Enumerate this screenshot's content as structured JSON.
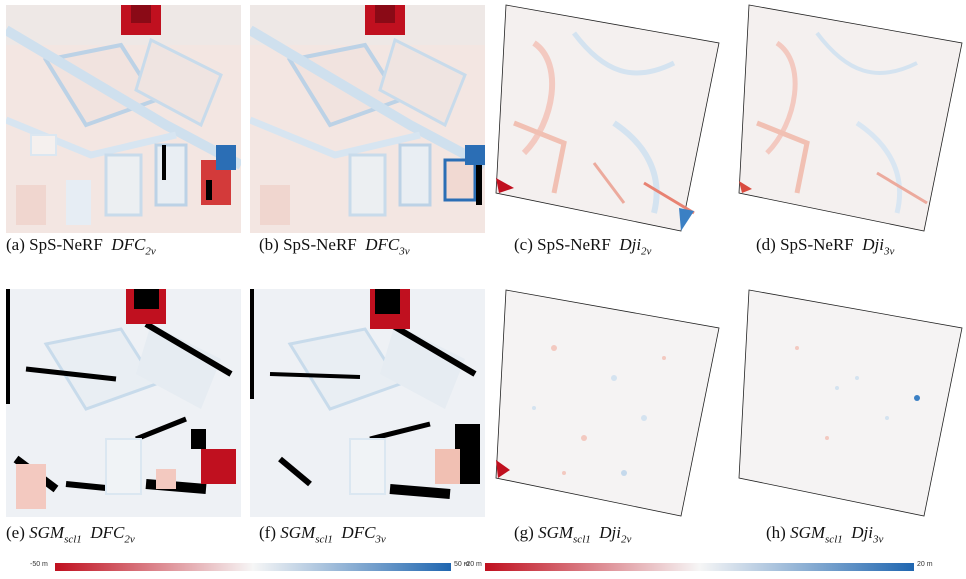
{
  "captions": [
    {
      "letter": "(a)",
      "method": "SpS-NeRF",
      "method_italic": false,
      "method_sub": "",
      "dataset": "DFC",
      "dataset_sub": "2v"
    },
    {
      "letter": "(b)",
      "method": "SpS-NeRF",
      "method_italic": false,
      "method_sub": "",
      "dataset": "DFC",
      "dataset_sub": "3v"
    },
    {
      "letter": "(c)",
      "method": "SpS-NeRF",
      "method_italic": false,
      "method_sub": "",
      "dataset": "Dji",
      "dataset_sub": "2v"
    },
    {
      "letter": "(d)",
      "method": "SpS-NeRF",
      "method_italic": false,
      "method_sub": "",
      "dataset": "Dji",
      "dataset_sub": "3v"
    },
    {
      "letter": "(e)",
      "method": "SGM",
      "method_italic": true,
      "method_sub": "scl1",
      "dataset": "DFC",
      "dataset_sub": "2v"
    },
    {
      "letter": "(f)",
      "method": "SGM",
      "method_italic": true,
      "method_sub": "scl1",
      "dataset": "DFC",
      "dataset_sub": "3v"
    },
    {
      "letter": "(g)",
      "method": "SGM",
      "method_italic": true,
      "method_sub": "scl1",
      "dataset": "Dji",
      "dataset_sub": "2v"
    },
    {
      "letter": "(h)",
      "method": "SGM",
      "method_italic": true,
      "method_sub": "scl1",
      "dataset": "Dji",
      "dataset_sub": "3v"
    }
  ],
  "colorbars": [
    {
      "min_label": "-50 m",
      "max_label": "50 m"
    },
    {
      "min_label": "-20 m",
      "max_label": "20 m"
    }
  ],
  "colors": {
    "negative": "#c0101f",
    "neutral": "#f6f6f6",
    "positive": "#1f66b0",
    "void": "#000000"
  }
}
